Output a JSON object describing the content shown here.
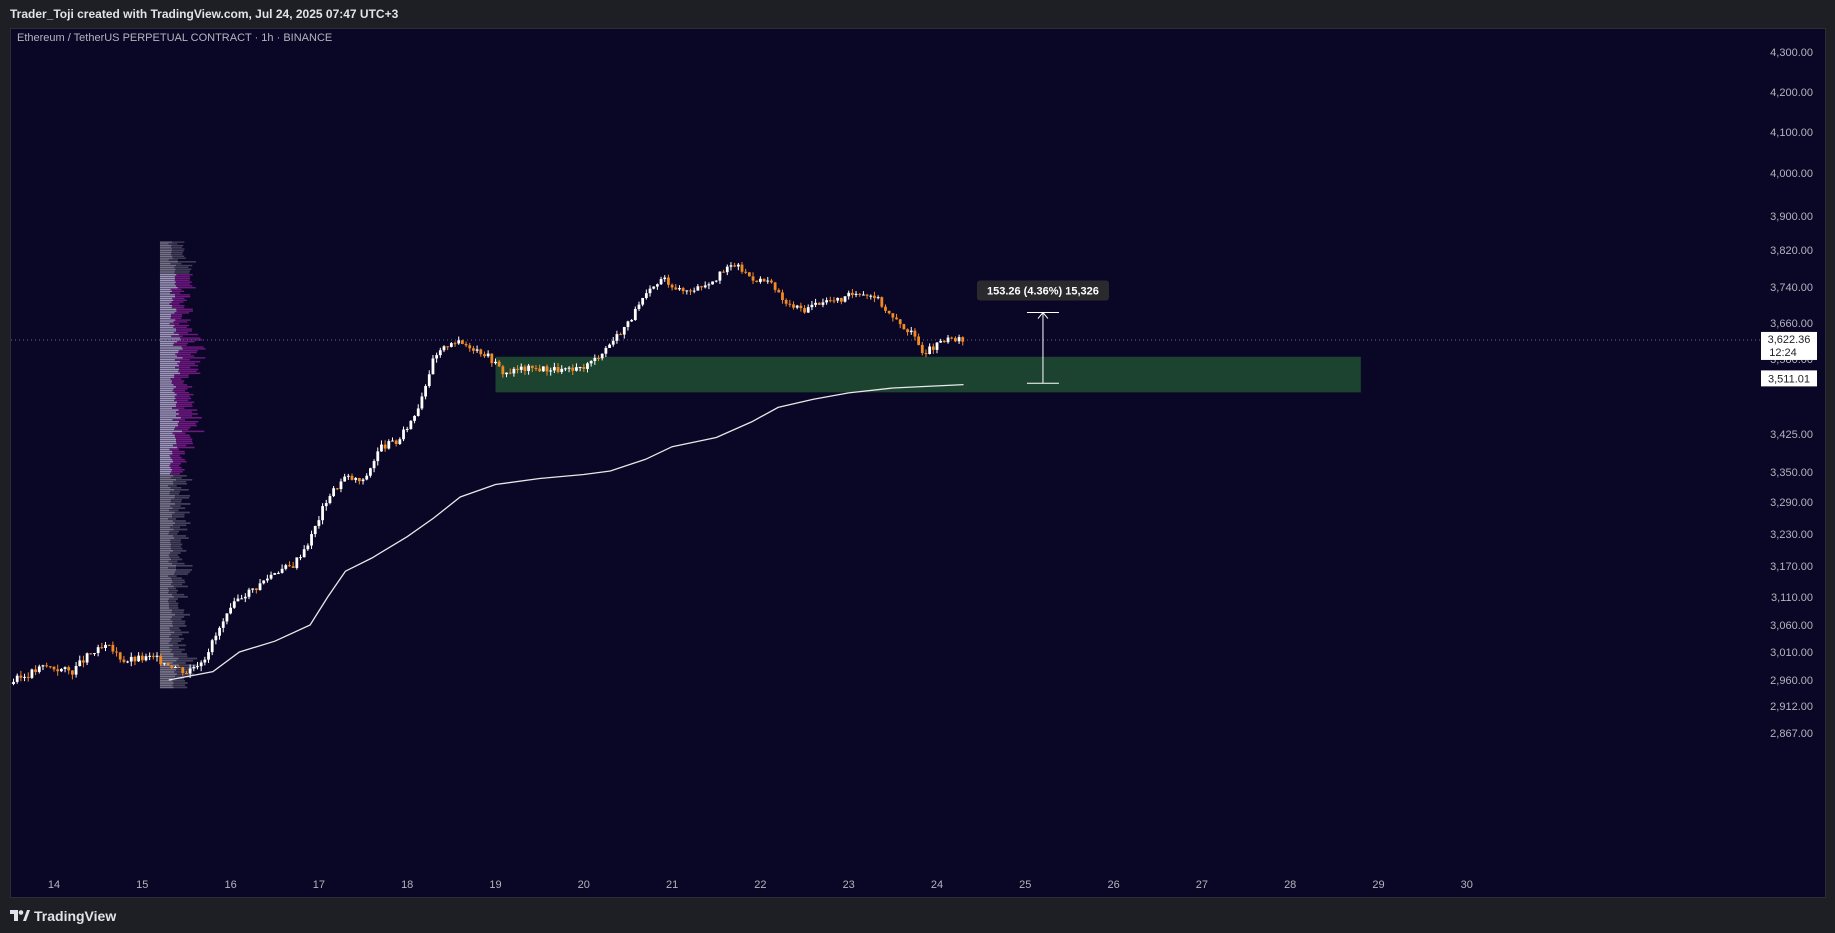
{
  "header": {
    "attribution": "Trader_Toji created with TradingView.com, Jul 24, 2025 07:47 UTC+3"
  },
  "symbol": {
    "legend": "Ethereum / TetherUS PERPETUAL CONTRACT · 1h · BINANCE"
  },
  "footer": {
    "brand": "TradingView"
  },
  "colors": {
    "background": "#0a0625",
    "candle_up": "#ffffff",
    "candle_down": "#f08a24",
    "vwap": "#e8e8e8",
    "zone_fill": "#1e4a32",
    "volume_profile_value_area": "#7a1b8c",
    "volume_profile_body": "#b9b0d6"
  },
  "price_labels": {
    "current_price": "3,622.36",
    "countdown": "12:24",
    "zone_level": "3,511.01"
  },
  "measure": {
    "label": "153.26 (4.36%) 15,326"
  },
  "chart_data": {
    "type": "candlestick",
    "title": "Ethereum / TetherUS PERPETUAL CONTRACT · 1h · BINANCE",
    "y_ticks": [
      "4,300.00",
      "4,200.00",
      "4,100.00",
      "4,000.00",
      "3,900.00",
      "3,820.00",
      "3,740.00",
      "3,660.00",
      "3,580.00",
      "3,425.00",
      "3,350.00",
      "3,290.00",
      "3,230.00",
      "3,170.00",
      "3,110.00",
      "3,060.00",
      "3,010.00",
      "2,960.00",
      "2,912.00",
      "2,867.00"
    ],
    "x_ticks": [
      "14",
      "15",
      "16",
      "17",
      "18",
      "19",
      "20",
      "21",
      "22",
      "23",
      "24",
      "25",
      "26",
      "27",
      "28",
      "29",
      "30"
    ],
    "grid": false,
    "current_price": 3622.36,
    "zone": {
      "top": 3585,
      "bottom": 3511.01,
      "from_day": 19.0,
      "to_day": 28.8
    },
    "measure_range": {
      "from": 3530,
      "to": 3683.26,
      "change": 153.26,
      "percent": 4.36
    },
    "price_path": [
      [
        13.5,
        2955
      ],
      [
        13.9,
        2985
      ],
      [
        14.2,
        2975
      ],
      [
        14.4,
        3005
      ],
      [
        14.6,
        3020
      ],
      [
        14.8,
        2995
      ],
      [
        15.1,
        3000
      ],
      [
        15.3,
        2990
      ],
      [
        15.5,
        2975
      ],
      [
        15.7,
        3000
      ],
      [
        15.9,
        3060
      ],
      [
        16.1,
        3110
      ],
      [
        16.3,
        3130
      ],
      [
        16.5,
        3160
      ],
      [
        16.7,
        3170
      ],
      [
        16.9,
        3220
      ],
      [
        17.1,
        3300
      ],
      [
        17.3,
        3340
      ],
      [
        17.5,
        3330
      ],
      [
        17.7,
        3400
      ],
      [
        17.9,
        3410
      ],
      [
        18.1,
        3470
      ],
      [
        18.3,
        3580
      ],
      [
        18.5,
        3620
      ],
      [
        18.7,
        3610
      ],
      [
        18.9,
        3590
      ],
      [
        19.1,
        3550
      ],
      [
        19.3,
        3560
      ],
      [
        19.6,
        3560
      ],
      [
        19.9,
        3555
      ],
      [
        20.1,
        3575
      ],
      [
        20.3,
        3615
      ],
      [
        20.5,
        3660
      ],
      [
        20.7,
        3720
      ],
      [
        20.9,
        3760
      ],
      [
        21.1,
        3730
      ],
      [
        21.3,
        3740
      ],
      [
        21.5,
        3760
      ],
      [
        21.7,
        3790
      ],
      [
        21.9,
        3760
      ],
      [
        22.1,
        3750
      ],
      [
        22.3,
        3700
      ],
      [
        22.5,
        3690
      ],
      [
        22.7,
        3710
      ],
      [
        22.9,
        3710
      ],
      [
        23.1,
        3730
      ],
      [
        23.3,
        3720
      ],
      [
        23.5,
        3670
      ],
      [
        23.7,
        3640
      ],
      [
        23.85,
        3595
      ],
      [
        24.0,
        3610
      ],
      [
        24.15,
        3625
      ],
      [
        24.3,
        3620
      ]
    ],
    "vwap_path": [
      [
        15.3,
        2960
      ],
      [
        15.8,
        2975
      ],
      [
        16.1,
        3010
      ],
      [
        16.5,
        3030
      ],
      [
        16.9,
        3060
      ],
      [
        17.1,
        3110
      ],
      [
        17.3,
        3160
      ],
      [
        17.6,
        3185
      ],
      [
        18.0,
        3225
      ],
      [
        18.3,
        3260
      ],
      [
        18.6,
        3300
      ],
      [
        19.0,
        3325
      ],
      [
        19.5,
        3337
      ],
      [
        20.0,
        3345
      ],
      [
        20.3,
        3352
      ],
      [
        20.7,
        3375
      ],
      [
        21.0,
        3400
      ],
      [
        21.5,
        3418
      ],
      [
        21.9,
        3450
      ],
      [
        22.2,
        3480
      ],
      [
        22.6,
        3497
      ],
      [
        23.0,
        3510
      ],
      [
        23.5,
        3520
      ],
      [
        24.3,
        3527
      ]
    ],
    "volume_profile": {
      "from_price": 2945,
      "to_price": 3840,
      "value_area_low": 3345,
      "value_area_high": 3770
    }
  }
}
